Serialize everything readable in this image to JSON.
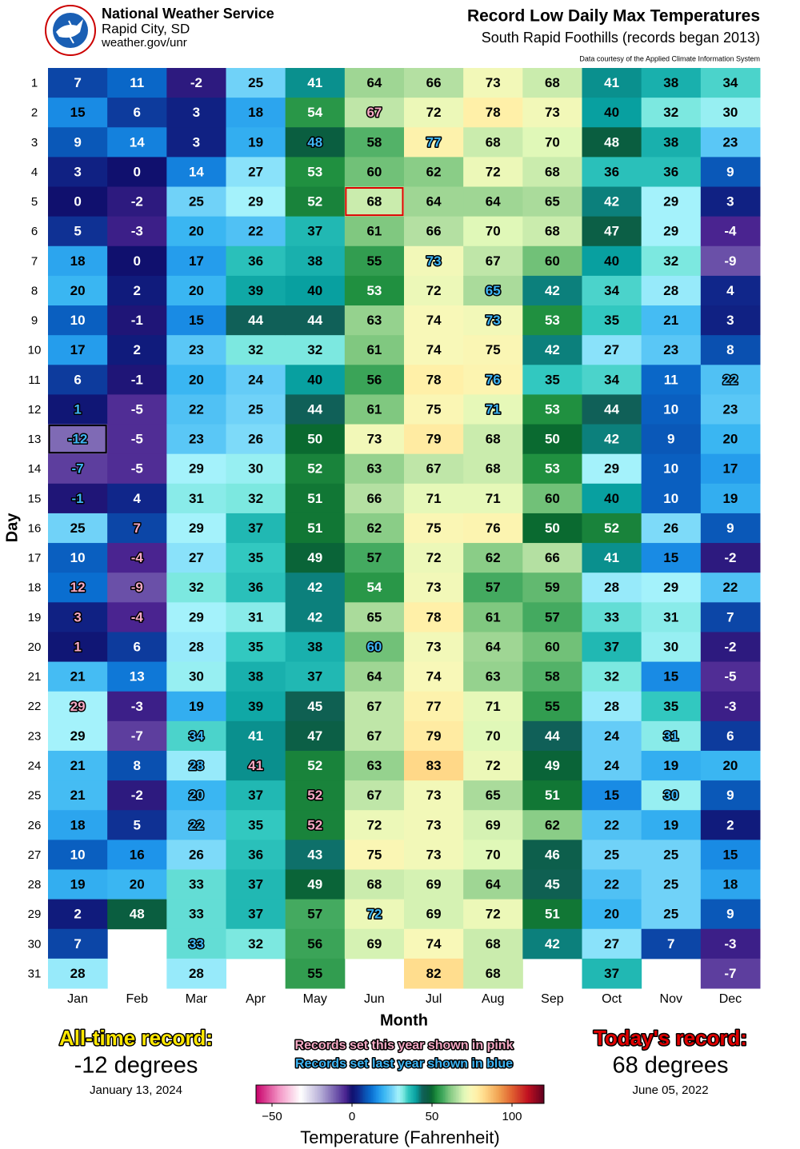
{
  "chart_data": {
    "type": "heatmap",
    "header": {
      "org": "National Weather Service",
      "location": "Rapid City, SD",
      "url": "weather.gov/unr"
    },
    "title": "Record Low Daily Max Temperatures",
    "subtitle": "South Rapid Foothills (records began 2013)",
    "note": "Data courtesy of the Applied Climate Information System",
    "xlabel": "Month",
    "ylabel": "Day",
    "days": [
      1,
      2,
      3,
      4,
      5,
      6,
      7,
      8,
      9,
      10,
      11,
      12,
      13,
      14,
      15,
      16,
      17,
      18,
      19,
      20,
      21,
      22,
      23,
      24,
      25,
      26,
      27,
      28,
      29,
      30,
      31
    ],
    "series": [
      {
        "name": "Jan",
        "values": [
          7,
          15,
          9,
          3,
          0,
          5,
          18,
          20,
          10,
          17,
          6,
          1,
          -12,
          -7,
          -1,
          25,
          10,
          12,
          3,
          1,
          21,
          29,
          29,
          21,
          21,
          18,
          10,
          19,
          2,
          7,
          28
        ],
        "this_year": [
          17,
          18,
          19,
          21
        ],
        "last_year": [
          11,
          12,
          13,
          14
        ]
      },
      {
        "name": "Feb",
        "values": [
          11,
          6,
          14,
          0,
          -2,
          -3,
          0,
          2,
          -1,
          2,
          -1,
          -5,
          -5,
          -5,
          4,
          7,
          -4,
          -9,
          -4,
          6,
          13,
          -3,
          -7,
          8,
          -2,
          5,
          16,
          20,
          48,
          null,
          null
        ],
        "this_year": [
          15,
          16,
          17,
          18
        ],
        "last_year": []
      },
      {
        "name": "Mar",
        "values": [
          -2,
          3,
          3,
          14,
          25,
          20,
          17,
          20,
          15,
          23,
          20,
          22,
          23,
          29,
          31,
          29,
          27,
          32,
          29,
          28,
          30,
          19,
          34,
          28,
          20,
          22,
          26,
          33,
          33,
          33,
          28
        ],
        "this_year": [],
        "last_year": [
          22,
          23,
          24,
          25,
          29
        ]
      },
      {
        "name": "Apr",
        "values": [
          25,
          18,
          19,
          27,
          29,
          22,
          36,
          39,
          44,
          32,
          24,
          25,
          26,
          30,
          32,
          37,
          35,
          36,
          31,
          35,
          38,
          39,
          41,
          41,
          37,
          35,
          36,
          37,
          37,
          32,
          null
        ],
        "this_year": [
          23
        ],
        "last_year": []
      },
      {
        "name": "May",
        "values": [
          41,
          54,
          48,
          53,
          52,
          37,
          38,
          40,
          44,
          32,
          40,
          44,
          50,
          52,
          51,
          51,
          49,
          42,
          42,
          38,
          37,
          45,
          47,
          52,
          52,
          52,
          43,
          49,
          57,
          56,
          55
        ],
        "this_year": [
          24,
          25
        ],
        "last_year": [
          2
        ]
      },
      {
        "name": "Jun",
        "values": [
          64,
          67,
          58,
          60,
          68,
          61,
          55,
          53,
          63,
          61,
          56,
          61,
          73,
          63,
          66,
          62,
          57,
          54,
          65,
          60,
          64,
          67,
          67,
          63,
          67,
          72,
          75,
          68,
          72,
          69,
          null
        ],
        "this_year": [
          1
        ],
        "last_year": [
          19,
          28
        ]
      },
      {
        "name": "Jul",
        "values": [
          66,
          72,
          77,
          62,
          64,
          66,
          73,
          72,
          74,
          74,
          78,
          75,
          79,
          67,
          71,
          75,
          72,
          73,
          78,
          73,
          74,
          77,
          79,
          83,
          73,
          73,
          73,
          69,
          69,
          74,
          82
        ],
        "this_year": [],
        "last_year": [
          2,
          6
        ]
      },
      {
        "name": "Aug",
        "values": [
          73,
          78,
          68,
          72,
          64,
          70,
          67,
          65,
          73,
          75,
          76,
          71,
          68,
          68,
          71,
          76,
          62,
          57,
          61,
          64,
          63,
          71,
          70,
          72,
          65,
          69,
          70,
          64,
          72,
          68,
          68
        ],
        "this_year": [],
        "last_year": [
          7,
          8,
          10,
          11
        ]
      },
      {
        "name": "Sep",
        "values": [
          68,
          73,
          70,
          68,
          65,
          68,
          60,
          42,
          53,
          42,
          35,
          53,
          50,
          53,
          60,
          50,
          66,
          59,
          57,
          60,
          58,
          55,
          44,
          49,
          51,
          62,
          46,
          45,
          51,
          42,
          null
        ],
        "this_year": [],
        "last_year": []
      },
      {
        "name": "Oct",
        "values": [
          41,
          40,
          48,
          36,
          42,
          47,
          40,
          34,
          35,
          27,
          34,
          44,
          42,
          29,
          40,
          52,
          41,
          28,
          33,
          37,
          32,
          28,
          24,
          24,
          15,
          22,
          25,
          22,
          20,
          27,
          37
        ],
        "this_year": [],
        "last_year": []
      },
      {
        "name": "Nov",
        "values": [
          38,
          32,
          38,
          36,
          29,
          29,
          32,
          28,
          21,
          23,
          11,
          10,
          9,
          10,
          10,
          26,
          15,
          29,
          31,
          30,
          15,
          35,
          31,
          19,
          30,
          19,
          25,
          25,
          25,
          7,
          null
        ],
        "this_year": [],
        "last_year": [
          22,
          24
        ]
      },
      {
        "name": "Dec",
        "values": [
          34,
          30,
          23,
          9,
          3,
          -4,
          -9,
          4,
          3,
          8,
          22,
          23,
          20,
          17,
          19,
          9,
          -2,
          22,
          7,
          -2,
          -5,
          -3,
          6,
          20,
          9,
          2,
          15,
          18,
          9,
          -3,
          -7
        ],
        "this_year": [],
        "last_year": [
          10
        ]
      }
    ],
    "highlight_colors": {
      "this_year": "#f6a9c4",
      "last_year": "#3fb6f5"
    },
    "all_time_cell": [
      0,
      12
    ],
    "today_cell": [
      5,
      4
    ],
    "all_time": {
      "heading": "All-time record:",
      "text": "-12 degrees",
      "date": "January 13, 2024"
    },
    "today": {
      "heading": "Today's record:",
      "text": "68 degrees",
      "date": "June 05, 2022"
    },
    "legend": {
      "this_year": "Records set this year shown in pink",
      "last_year": "Records set last year shown in blue"
    },
    "colormap": [
      [
        -60,
        "#c8006a"
      ],
      [
        -45,
        "#f49ac8"
      ],
      [
        -32,
        "#ffffff"
      ],
      [
        -20,
        "#b8b0d8"
      ],
      [
        -9,
        "#6a50a8"
      ],
      [
        -4,
        "#4a2490"
      ],
      [
        0,
        "#10106e"
      ],
      [
        4,
        "#10268a"
      ],
      [
        8,
        "#0a50b0"
      ],
      [
        12,
        "#0a6ed0"
      ],
      [
        16,
        "#1e94ea"
      ],
      [
        20,
        "#3ab6f2"
      ],
      [
        25,
        "#70d2f8"
      ],
      [
        29,
        "#a4f2fb"
      ],
      [
        32,
        "#7ce8e0"
      ],
      [
        35,
        "#32c8c0"
      ],
      [
        40,
        "#08a0a0"
      ],
      [
        44,
        "#106058"
      ],
      [
        48,
        "#0a5e40"
      ],
      [
        50,
        "#0a6a30"
      ],
      [
        53,
        "#209040"
      ],
      [
        57,
        "#44aa60"
      ],
      [
        61,
        "#80c880"
      ],
      [
        66,
        "#b4e0a2"
      ],
      [
        70,
        "#e0f8b8"
      ],
      [
        74,
        "#f8f8b8"
      ],
      [
        78,
        "#fff0a8"
      ],
      [
        83,
        "#ffd888"
      ],
      [
        92,
        "#f0a050"
      ],
      [
        100,
        "#e06030"
      ],
      [
        110,
        "#c01020"
      ],
      [
        120,
        "#600020"
      ]
    ],
    "clim": [
      -60,
      120
    ],
    "cticks": [
      {
        "value": -50,
        "label": "−50"
      },
      0,
      50,
      100
    ],
    "colorbar_label": "Temperature (Fahrenheit)"
  }
}
